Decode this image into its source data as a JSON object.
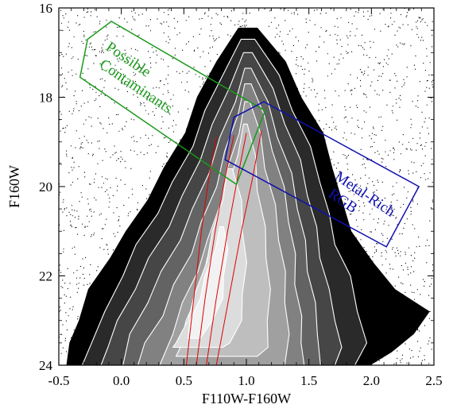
{
  "chart_data": {
    "type": "scatter",
    "title": "",
    "xlabel": "F110W-F160W",
    "ylabel": "F160W",
    "xlim": [
      -0.5,
      2.5
    ],
    "ylim": [
      24,
      16
    ],
    "y_inverted": true,
    "x_ticks": [
      -0.5,
      0.0,
      0.5,
      1.0,
      1.5,
      2.0,
      2.5
    ],
    "x_tick_labels": [
      "-0.5",
      "0.0",
      "0.5",
      "1.0",
      "1.5",
      "2.0",
      "2.5"
    ],
    "y_ticks": [
      16,
      18,
      20,
      22,
      24
    ],
    "y_tick_labels": [
      "16",
      "18",
      "20",
      "22",
      "24"
    ],
    "density_envelopes": [
      {
        "level": 1,
        "color": "#000000",
        "left": [
          [
            0.95,
            16.45
          ],
          [
            0.75,
            17.2
          ],
          [
            0.62,
            18.0
          ],
          [
            0.5,
            18.8
          ],
          [
            0.35,
            19.6
          ],
          [
            0.2,
            20.3
          ],
          [
            0.05,
            21.0
          ],
          [
            -0.1,
            21.6
          ],
          [
            -0.25,
            22.3
          ],
          [
            -0.35,
            23.0
          ],
          [
            -0.4,
            23.5
          ],
          [
            -0.45,
            24.0
          ]
        ],
        "right": [
          [
            1.1,
            16.45
          ],
          [
            1.3,
            17.2
          ],
          [
            1.45,
            18.0
          ],
          [
            1.6,
            18.8
          ],
          [
            1.7,
            19.6
          ],
          [
            1.75,
            20.3
          ],
          [
            1.85,
            21.0
          ],
          [
            2.0,
            21.7
          ],
          [
            2.2,
            22.3
          ],
          [
            2.45,
            22.8
          ],
          [
            2.35,
            23.3
          ],
          [
            2.15,
            23.7
          ],
          [
            2.0,
            24.0
          ]
        ]
      },
      {
        "level": 2,
        "color": "#2a2a2a",
        "left": [
          [
            0.97,
            16.7
          ],
          [
            0.8,
            17.5
          ],
          [
            0.68,
            18.3
          ],
          [
            0.56,
            19.1
          ],
          [
            0.42,
            19.9
          ],
          [
            0.28,
            20.6
          ],
          [
            0.13,
            21.3
          ],
          [
            0.0,
            22.0
          ],
          [
            -0.12,
            22.8
          ],
          [
            -0.25,
            23.5
          ],
          [
            -0.3,
            24.0
          ]
        ],
        "right": [
          [
            1.08,
            16.7
          ],
          [
            1.25,
            17.5
          ],
          [
            1.38,
            18.3
          ],
          [
            1.5,
            19.1
          ],
          [
            1.6,
            19.9
          ],
          [
            1.65,
            20.6
          ],
          [
            1.72,
            21.3
          ],
          [
            1.82,
            22.0
          ],
          [
            1.9,
            22.8
          ],
          [
            1.95,
            23.5
          ],
          [
            1.88,
            24.0
          ]
        ]
      },
      {
        "level": 3,
        "color": "#464646",
        "left": [
          [
            0.99,
            17.0
          ],
          [
            0.85,
            17.8
          ],
          [
            0.74,
            18.6
          ],
          [
            0.62,
            19.4
          ],
          [
            0.5,
            20.2
          ],
          [
            0.37,
            20.9
          ],
          [
            0.23,
            21.6
          ],
          [
            0.1,
            22.3
          ],
          [
            -0.02,
            23.0
          ],
          [
            -0.12,
            23.6
          ],
          [
            -0.15,
            24.0
          ]
        ],
        "right": [
          [
            1.06,
            17.0
          ],
          [
            1.2,
            17.8
          ],
          [
            1.32,
            18.6
          ],
          [
            1.42,
            19.4
          ],
          [
            1.5,
            20.2
          ],
          [
            1.55,
            20.9
          ],
          [
            1.6,
            21.6
          ],
          [
            1.65,
            22.3
          ],
          [
            1.72,
            23.0
          ],
          [
            1.75,
            23.6
          ],
          [
            1.72,
            24.0
          ]
        ]
      },
      {
        "level": 4,
        "color": "#636363",
        "left": [
          [
            1.0,
            17.35
          ],
          [
            0.9,
            18.1
          ],
          [
            0.8,
            18.9
          ],
          [
            0.69,
            19.7
          ],
          [
            0.58,
            20.5
          ],
          [
            0.46,
            21.2
          ],
          [
            0.33,
            21.9
          ],
          [
            0.2,
            22.6
          ],
          [
            0.08,
            23.3
          ],
          [
            0.0,
            24.0
          ]
        ],
        "right": [
          [
            1.05,
            17.35
          ],
          [
            1.16,
            18.1
          ],
          [
            1.26,
            18.9
          ],
          [
            1.35,
            19.7
          ],
          [
            1.42,
            20.5
          ],
          [
            1.46,
            21.2
          ],
          [
            1.5,
            21.9
          ],
          [
            1.54,
            22.6
          ],
          [
            1.58,
            23.3
          ],
          [
            1.58,
            24.0
          ]
        ]
      },
      {
        "level": 5,
        "color": "#818181",
        "left": [
          [
            1.0,
            17.7
          ],
          [
            0.92,
            18.4
          ],
          [
            0.84,
            19.2
          ],
          [
            0.75,
            20.0
          ],
          [
            0.65,
            20.8
          ],
          [
            0.55,
            21.5
          ],
          [
            0.43,
            22.2
          ],
          [
            0.32,
            22.9
          ],
          [
            0.2,
            23.5
          ],
          [
            0.12,
            24.0
          ]
        ],
        "right": [
          [
            1.05,
            17.7
          ],
          [
            1.13,
            18.4
          ],
          [
            1.22,
            19.2
          ],
          [
            1.29,
            20.0
          ],
          [
            1.35,
            20.8
          ],
          [
            1.38,
            21.5
          ],
          [
            1.4,
            22.2
          ],
          [
            1.43,
            22.9
          ],
          [
            1.45,
            23.5
          ],
          [
            1.45,
            24.0
          ]
        ]
      },
      {
        "level": 6,
        "color": "#a0a0a0",
        "left": [
          [
            1.0,
            18.1
          ],
          [
            0.93,
            18.8
          ],
          [
            0.86,
            19.6
          ],
          [
            0.78,
            20.4
          ],
          [
            0.7,
            21.2
          ],
          [
            0.6,
            21.9
          ],
          [
            0.5,
            22.6
          ],
          [
            0.4,
            23.3
          ],
          [
            0.32,
            24.0
          ]
        ],
        "right": [
          [
            1.04,
            18.1
          ],
          [
            1.1,
            18.8
          ],
          [
            1.16,
            19.6
          ],
          [
            1.22,
            20.4
          ],
          [
            1.27,
            21.2
          ],
          [
            1.3,
            21.9
          ],
          [
            1.32,
            22.6
          ],
          [
            1.33,
            23.3
          ],
          [
            1.32,
            24.0
          ]
        ]
      },
      {
        "level": 7,
        "color": "#bebebe",
        "left": [
          [
            0.99,
            18.6
          ],
          [
            0.92,
            19.3
          ],
          [
            0.85,
            20.1
          ],
          [
            0.78,
            20.9
          ],
          [
            0.7,
            21.6
          ],
          [
            0.62,
            22.3
          ],
          [
            0.53,
            23.0
          ],
          [
            0.46,
            23.6
          ],
          [
            0.45,
            23.8
          ]
        ],
        "right": [
          [
            1.02,
            18.6
          ],
          [
            1.06,
            19.3
          ],
          [
            1.1,
            20.1
          ],
          [
            1.14,
            20.9
          ],
          [
            1.17,
            21.6
          ],
          [
            1.18,
            22.3
          ],
          [
            1.18,
            23.0
          ],
          [
            1.16,
            23.6
          ],
          [
            1.1,
            23.8
          ]
        ]
      },
      {
        "level": 8,
        "color": "#dcdcdc",
        "left": [
          [
            0.86,
            19.6
          ],
          [
            0.8,
            20.3
          ],
          [
            0.74,
            21.0
          ],
          [
            0.67,
            21.7
          ],
          [
            0.6,
            22.4
          ],
          [
            0.52,
            23.0
          ],
          [
            0.45,
            23.5
          ],
          [
            0.4,
            23.6
          ]
        ],
        "right": [
          [
            0.9,
            19.6
          ],
          [
            0.95,
            20.3
          ],
          [
            0.98,
            21.0
          ],
          [
            0.99,
            21.7
          ],
          [
            0.98,
            22.4
          ],
          [
            0.95,
            23.0
          ],
          [
            0.88,
            23.5
          ],
          [
            0.8,
            23.6
          ]
        ]
      },
      {
        "level": 9,
        "color": "#f2f2f2",
        "left": [
          [
            0.8,
            20.9
          ],
          [
            0.74,
            21.4
          ],
          [
            0.68,
            22.0
          ],
          [
            0.62,
            22.5
          ],
          [
            0.56,
            23.0
          ],
          [
            0.52,
            23.4
          ]
        ],
        "right": [
          [
            0.83,
            20.9
          ],
          [
            0.84,
            21.4
          ],
          [
            0.83,
            22.0
          ],
          [
            0.8,
            22.5
          ],
          [
            0.74,
            23.0
          ],
          [
            0.62,
            23.4
          ]
        ]
      }
    ],
    "isochrones": [
      {
        "color": "#e00000",
        "points": [
          [
            0.52,
            24.0
          ],
          [
            0.58,
            22.5
          ],
          [
            0.64,
            21.0
          ],
          [
            0.7,
            19.8
          ],
          [
            0.76,
            18.9
          ]
        ]
      },
      {
        "color": "#e00000",
        "points": [
          [
            0.6,
            24.0
          ],
          [
            0.67,
            22.5
          ],
          [
            0.75,
            21.0
          ],
          [
            0.83,
            19.8
          ],
          [
            0.9,
            18.85
          ]
        ]
      },
      {
        "color": "#e00000",
        "points": [
          [
            0.68,
            24.0
          ],
          [
            0.76,
            22.5
          ],
          [
            0.85,
            21.0
          ],
          [
            0.93,
            19.8
          ],
          [
            1.0,
            18.8
          ]
        ]
      },
      {
        "color": "#e00000",
        "points": [
          [
            0.76,
            24.0
          ],
          [
            0.86,
            22.5
          ],
          [
            0.96,
            21.0
          ],
          [
            1.05,
            19.8
          ],
          [
            1.12,
            18.75
          ]
        ]
      }
    ],
    "selection_boxes": [
      {
        "name": "Possible Contaminants",
        "label_lines": [
          "Possible",
          "Contaminants"
        ],
        "color": "#1a9a1a",
        "polygon": [
          [
            -0.08,
            16.3
          ],
          [
            1.15,
            18.3
          ],
          [
            0.92,
            19.95
          ],
          [
            -0.33,
            17.55
          ],
          [
            -0.27,
            16.7
          ]
        ]
      },
      {
        "name": "Metal-Rich RGB",
        "label_lines": [
          "Metal-Rich",
          "RGB"
        ],
        "color": "#1010b0",
        "polygon": [
          [
            1.14,
            18.1
          ],
          [
            2.38,
            20.0
          ],
          [
            2.12,
            21.35
          ],
          [
            0.83,
            19.4
          ],
          [
            0.9,
            18.45
          ]
        ]
      }
    ],
    "scatter_points_note_only": false,
    "grid": false,
    "legend": "none"
  }
}
